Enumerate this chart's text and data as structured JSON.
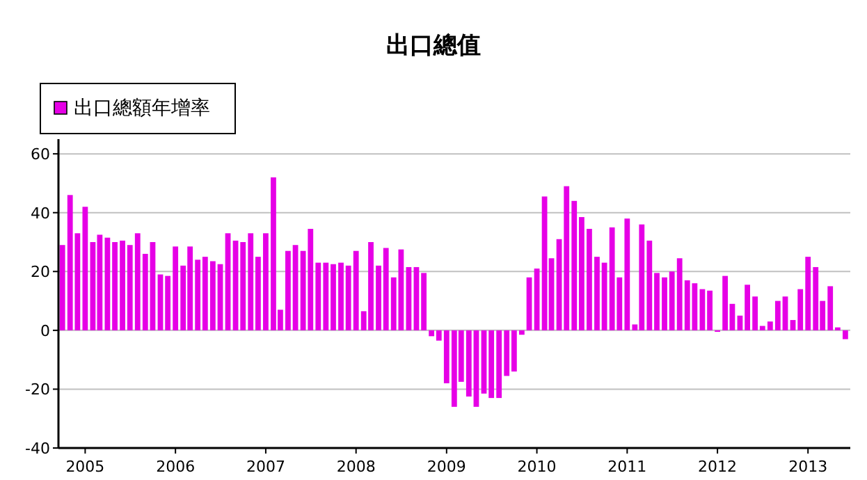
{
  "chart_data": {
    "type": "bar",
    "title": "出口總值",
    "xlim": [
      "2004-09-15",
      "2013-06-21"
    ],
    "xticks": [
      "2005",
      "2006",
      "2007",
      "2008",
      "2009",
      "2010",
      "2011",
      "2012",
      "2013"
    ],
    "ylim": [
      -40,
      65
    ],
    "yticks": [
      -40,
      -20,
      0,
      20,
      40,
      60
    ],
    "grid": "y",
    "legend": "top left",
    "x": [
      "2004-10",
      "2004-11",
      "2004-12",
      "2005-01",
      "2005-02",
      "2005-03",
      "2005-04",
      "2005-05",
      "2005-06",
      "2005-07",
      "2005-08",
      "2005-09",
      "2005-10",
      "2005-11",
      "2005-12",
      "2006-01",
      "2006-02",
      "2006-03",
      "2006-04",
      "2006-05",
      "2006-06",
      "2006-07",
      "2006-08",
      "2006-09",
      "2006-10",
      "2006-11",
      "2006-12",
      "2007-01",
      "2007-02",
      "2007-03",
      "2007-04",
      "2007-05",
      "2007-06",
      "2007-07",
      "2007-08",
      "2007-09",
      "2007-10",
      "2007-11",
      "2007-12",
      "2008-01",
      "2008-02",
      "2008-03",
      "2008-04",
      "2008-05",
      "2008-06",
      "2008-07",
      "2008-08",
      "2008-09",
      "2008-10",
      "2008-11",
      "2008-12",
      "2009-01",
      "2009-02",
      "2009-03",
      "2009-04",
      "2009-05",
      "2009-06",
      "2009-07",
      "2009-08",
      "2009-09",
      "2009-10",
      "2009-11",
      "2009-12",
      "2010-01",
      "2010-02",
      "2010-03",
      "2010-04",
      "2010-05",
      "2010-06",
      "2010-07",
      "2010-08",
      "2010-09",
      "2010-10",
      "2010-11",
      "2010-12",
      "2011-01",
      "2011-02",
      "2011-03",
      "2011-04",
      "2011-05",
      "2011-06",
      "2011-07",
      "2011-08",
      "2011-09",
      "2011-10",
      "2011-11",
      "2011-12",
      "2012-01",
      "2012-02",
      "2012-03",
      "2012-04",
      "2012-05",
      "2012-06",
      "2012-07",
      "2012-08",
      "2012-09",
      "2012-10",
      "2012-11",
      "2012-12",
      "2013-01",
      "2013-02",
      "2013-03",
      "2013-04",
      "2013-05",
      "2013-06"
    ],
    "series": [
      {
        "name": "出口總額年增率",
        "color": "#e600e6",
        "values": [
          29,
          46,
          33,
          42,
          30,
          32.5,
          31.5,
          30,
          30.5,
          29,
          33,
          26,
          30,
          19,
          18.5,
          28.5,
          22,
          28.5,
          24,
          25,
          23.5,
          22.5,
          33,
          30.5,
          30,
          33,
          25,
          33,
          52,
          7,
          27,
          29,
          27,
          34.5,
          23,
          23,
          22.5,
          23,
          22,
          27,
          6.5,
          30,
          22,
          28,
          18,
          27.5,
          21.5,
          21.5,
          19.5,
          -2,
          -3.5,
          -18,
          -26,
          -17.5,
          -22.5,
          -26,
          -21.5,
          -23,
          -23,
          -15.5,
          -14,
          -1.5,
          18,
          21,
          45.5,
          24.5,
          31,
          49,
          44,
          38.5,
          34.5,
          25,
          23,
          35,
          18,
          38,
          2,
          36,
          30.5,
          19.5,
          18,
          20,
          24.5,
          17,
          16,
          14,
          13.5,
          -0.5,
          18.5,
          9,
          5,
          15.5,
          11.5,
          1.5,
          3,
          10,
          11.5,
          3.5,
          14,
          25,
          21.5,
          10,
          15,
          1,
          -3
        ]
      }
    ]
  }
}
